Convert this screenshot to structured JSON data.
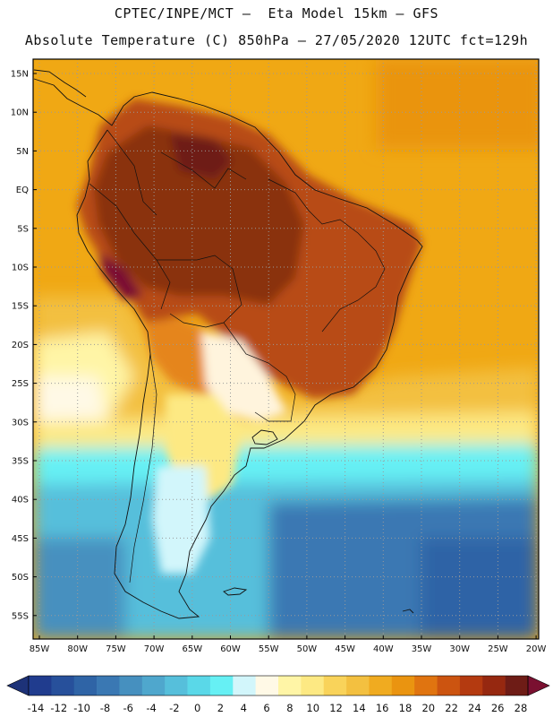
{
  "title_line1": "CPTEC/INPE/MCT –  Eta Model 15km – GFS",
  "title_line2": "Absolute Temperature (C) 850hPa – 27/05/2020 12UTC fct=129h",
  "lat_labels": [
    "15N",
    "10N",
    "5N",
    "EQ",
    "5S",
    "10S",
    "15S",
    "20S",
    "25S",
    "30S",
    "35S",
    "40S",
    "45S",
    "50S",
    "55S"
  ],
  "lon_labels": [
    "85W",
    "80W",
    "75W",
    "70W",
    "65W",
    "60W",
    "55W",
    "50W",
    "45W",
    "40W",
    "35W",
    "30W",
    "25W",
    "20W"
  ],
  "colorbar": {
    "labels": [
      "-14",
      "-12",
      "-10",
      "-8",
      "-6",
      "-4",
      "-2",
      "0",
      "2",
      "4",
      "6",
      "8",
      "10",
      "12",
      "14",
      "16",
      "18",
      "20",
      "22",
      "24",
      "26",
      "28"
    ],
    "colors": [
      "#203c8e",
      "#27509b",
      "#2f64a6",
      "#3a78b3",
      "#4690bf",
      "#4fa7cd",
      "#56bfdb",
      "#5ad8e8",
      "#66f0f4",
      "#d2f6fb",
      "#fff9e6",
      "#fff5a6",
      "#fde983",
      "#f9d35a",
      "#f3c040",
      "#f0ab20",
      "#ea9410",
      "#e07410",
      "#cc5410",
      "#b43a10",
      "#962810",
      "#6e1c16"
    ],
    "low_arrow_color": "#1d3278",
    "high_arrow_color": "#7a1030"
  },
  "map": {
    "region": "South America",
    "ocean_colors": {
      "warm": "#f0a814",
      "mid": "#fce886",
      "cool": "#5adbe8",
      "cold": "#3a78b3"
    },
    "land_colors": {
      "hot": "#7a2a10",
      "warm": "#b84c12",
      "mild": "#e5851a",
      "cool_south": "#fff4dd"
    }
  }
}
